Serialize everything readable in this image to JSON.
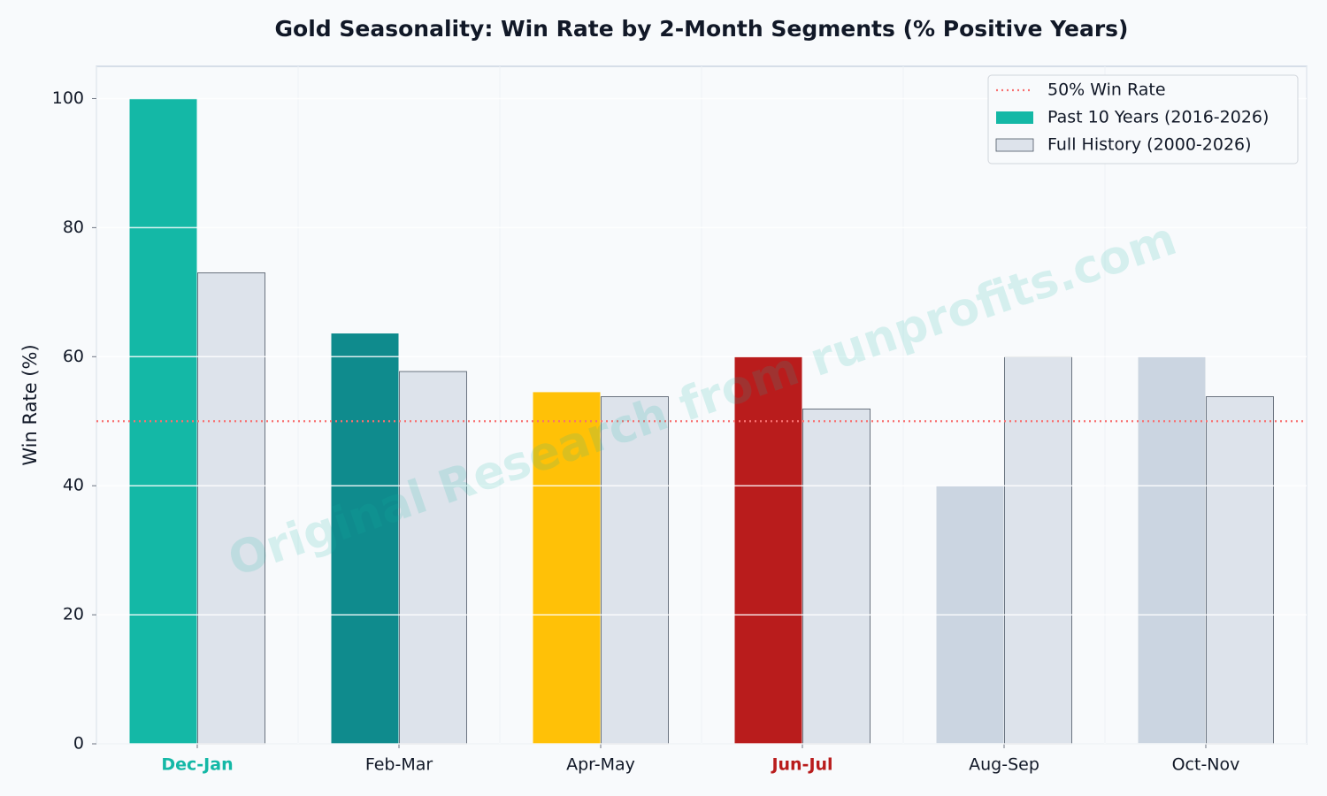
{
  "chart_data": {
    "type": "bar",
    "title": "Gold Seasonality: Win Rate by 2-Month Segments (% Positive Years)",
    "ylabel": "Win Rate (%)",
    "categories": [
      "Dec-Jan",
      "Feb-Mar",
      "Apr-May",
      "Jun-Jul",
      "Aug-Sep",
      "Oct-Nov"
    ],
    "category_label_colors": [
      "#14b8a6",
      "#111827",
      "#111827",
      "#b91c1c",
      "#111827",
      "#111827"
    ],
    "category_label_bold": [
      true,
      false,
      false,
      true,
      false,
      false
    ],
    "series": [
      {
        "name": "Past 10 Years (2016-2026)",
        "color": "#14b8a6",
        "colors": [
          "#14b8a6",
          "#0f8b8d",
          "#ffc107",
          "#b91c1c",
          "#cbd5e1",
          "#cbd5e1"
        ],
        "values": [
          100,
          63.6,
          54.5,
          60,
          40,
          60
        ]
      },
      {
        "name": "Full History (2000-2026)",
        "color": "#dde3eb",
        "edgecolor": "#4b5563",
        "values": [
          73,
          57.7,
          53.8,
          51.9,
          60,
          53.8
        ]
      }
    ],
    "reference_line": {
      "value": 50,
      "label": "50% Win Rate",
      "color": "#f87171"
    },
    "ylim": [
      0,
      105
    ],
    "yticks": [
      0,
      20,
      40,
      60,
      80,
      100
    ],
    "grid": true,
    "legend": "upper right",
    "watermark": "Original Research from runprofits.com"
  }
}
